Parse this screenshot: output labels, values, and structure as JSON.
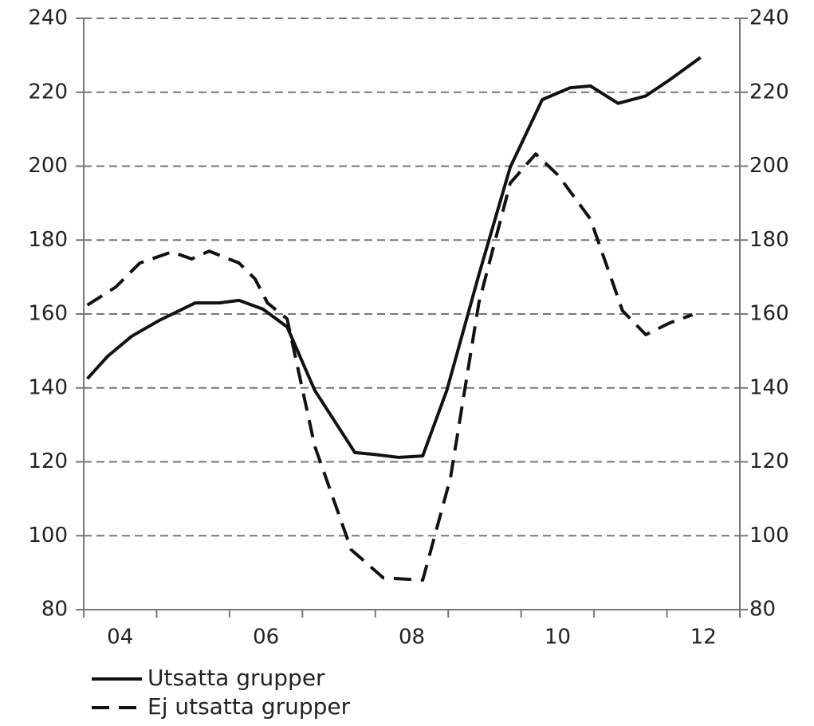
{
  "chart_data": {
    "type": "line",
    "xlim": [
      2004,
      2013
    ],
    "xticks": [
      {
        "value": 2004.5,
        "label": "04"
      },
      {
        "value": 2006.5,
        "label": "06"
      },
      {
        "value": 2008.5,
        "label": "08"
      },
      {
        "value": 2010.5,
        "label": "10"
      },
      {
        "value": 2012.5,
        "label": "12"
      }
    ],
    "xtick_marks": [
      2004,
      2005,
      2006,
      2007,
      2008,
      2009,
      2010,
      2011,
      2012,
      2013
    ],
    "ylim": [
      80,
      240
    ],
    "yticks": [
      80,
      100,
      120,
      140,
      160,
      180,
      200,
      220,
      240
    ],
    "y2lim": [
      80,
      240
    ],
    "y2ticks": [
      80,
      100,
      120,
      140,
      160,
      180,
      200,
      220,
      240
    ],
    "grid": true,
    "series": [
      {
        "name": "Utsatta grupper",
        "color": "#111111",
        "dash": "solid",
        "x": [
          2004.05,
          2004.33,
          2004.66,
          2005.04,
          2005.53,
          2005.86,
          2006.13,
          2006.46,
          2006.79,
          2007.17,
          2007.72,
          2007.99,
          2008.32,
          2008.65,
          2008.98,
          2009.42,
          2009.85,
          2010.29,
          2010.67,
          2010.95,
          2011.33,
          2011.71,
          2012.04,
          2012.46
        ],
        "values": [
          142.5,
          148.6,
          154,
          158.3,
          163,
          163,
          163.7,
          161.3,
          156.5,
          139.3,
          122.5,
          122,
          121.2,
          121.6,
          139.3,
          170.6,
          199.7,
          218,
          221.2,
          221.7,
          217,
          219,
          223.4,
          229.4
        ]
      },
      {
        "name": "Ej utsatta grupper",
        "color": "#111111",
        "dash": "dashed",
        "x": [
          2004.05,
          2004.44,
          2004.77,
          2005.21,
          2005.48,
          2005.72,
          2006.13,
          2006.35,
          2006.52,
          2006.79,
          2007.17,
          2007.67,
          2008.11,
          2008.65,
          2009.03,
          2009.42,
          2009.85,
          2010.2,
          2010.51,
          2010.95,
          2011.39,
          2011.71,
          2012.04,
          2012.35
        ],
        "values": [
          162.4,
          167.3,
          173.8,
          176.8,
          174.9,
          177,
          173.8,
          169.5,
          163,
          158.7,
          124.2,
          96.2,
          88.6,
          88,
          115.6,
          163,
          195.4,
          203.3,
          197.5,
          185.7,
          160.9,
          154.4,
          157.6,
          159.8
        ]
      }
    ]
  }
}
